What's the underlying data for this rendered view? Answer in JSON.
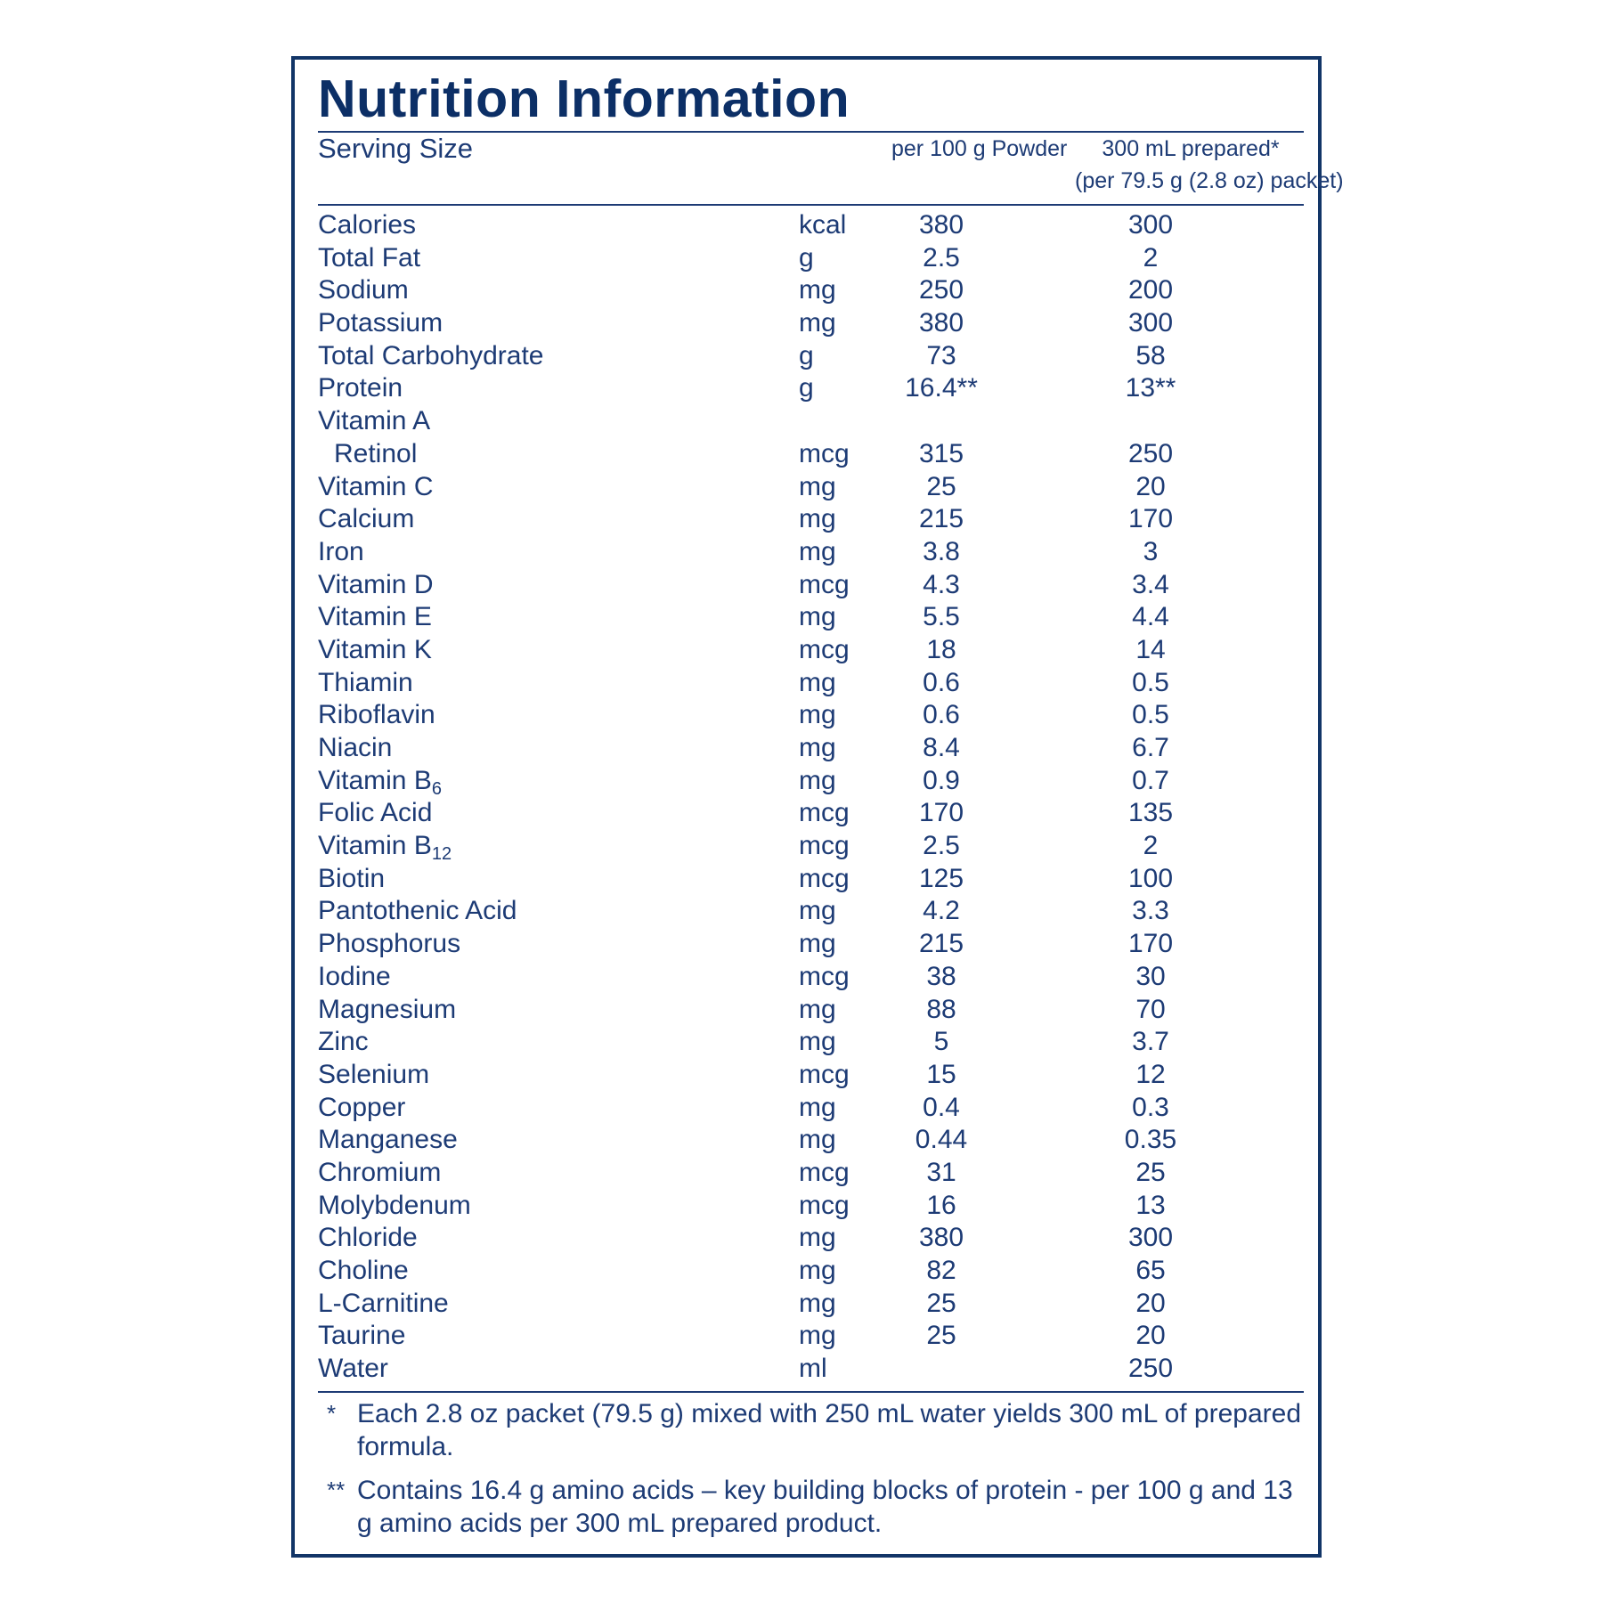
{
  "title": "Nutrition Information",
  "header": {
    "serving_size": "Serving Size",
    "col_powder": "per 100 g Powder",
    "col_prepared_1": "300 mL prepared*",
    "col_prepared_2": "(per 79.5 g (2.8 oz) packet)"
  },
  "rows": [
    {
      "name": "Calories",
      "unit": "kcal",
      "per100": "380",
      "prep": "300"
    },
    {
      "name": "Total Fat",
      "unit": "g",
      "per100": "2.5",
      "prep": "2"
    },
    {
      "name": "Sodium",
      "unit": "mg",
      "per100": "250",
      "prep": "200"
    },
    {
      "name": "Potassium",
      "unit": "mg",
      "per100": "380",
      "prep": "300"
    },
    {
      "name": "Total Carbohydrate",
      "unit": "g",
      "per100": "73",
      "prep": "58"
    },
    {
      "name": "Protein",
      "unit": "g",
      "per100": "16.4**",
      "prep": "13**"
    },
    {
      "name": "Vitamin A",
      "unit": "",
      "per100": "",
      "prep": ""
    },
    {
      "name": "Retinol",
      "unit": "mcg",
      "per100": "315",
      "prep": "250",
      "indent": true
    },
    {
      "name": "Vitamin C",
      "unit": "mg",
      "per100": "25",
      "prep": "20"
    },
    {
      "name": "Calcium",
      "unit": "mg",
      "per100": "215",
      "prep": "170"
    },
    {
      "name": "Iron",
      "unit": "mg",
      "per100": "3.8",
      "prep": "3"
    },
    {
      "name": "Vitamin D",
      "unit": "mcg",
      "per100": "4.3",
      "prep": "3.4"
    },
    {
      "name": "Vitamin E",
      "unit": "mg",
      "per100": "5.5",
      "prep": "4.4"
    },
    {
      "name": "Vitamin K",
      "unit": "mcg",
      "per100": "18",
      "prep": "14"
    },
    {
      "name": "Thiamin",
      "unit": "mg",
      "per100": "0.6",
      "prep": "0.5"
    },
    {
      "name": "Riboflavin",
      "unit": "mg",
      "per100": "0.6",
      "prep": "0.5"
    },
    {
      "name": "Niacin",
      "unit": "mg",
      "per100": "8.4",
      "prep": "6.7"
    },
    {
      "name": "Vitamin B",
      "sub": "6",
      "unit": "mg",
      "per100": "0.9",
      "prep": "0.7"
    },
    {
      "name": "Folic Acid",
      "unit": "mcg",
      "per100": "170",
      "prep": "135"
    },
    {
      "name": "Vitamin B",
      "sub": "12",
      "unit": "mcg",
      "per100": "2.5",
      "prep": "2"
    },
    {
      "name": "Biotin",
      "unit": "mcg",
      "per100": "125",
      "prep": "100"
    },
    {
      "name": "Pantothenic Acid",
      "unit": "mg",
      "per100": "4.2",
      "prep": "3.3"
    },
    {
      "name": "Phosphorus",
      "unit": "mg",
      "per100": "215",
      "prep": "170"
    },
    {
      "name": "Iodine",
      "unit": "mcg",
      "per100": "38",
      "prep": "30"
    },
    {
      "name": "Magnesium",
      "unit": "mg",
      "per100": "88",
      "prep": "70"
    },
    {
      "name": "Zinc",
      "unit": "mg",
      "per100": "5",
      "prep": "3.7"
    },
    {
      "name": "Selenium",
      "unit": "mcg",
      "per100": "15",
      "prep": "12"
    },
    {
      "name": "Copper",
      "unit": "mg",
      "per100": "0.4",
      "prep": "0.3"
    },
    {
      "name": "Manganese",
      "unit": "mg",
      "per100": "0.44",
      "prep": "0.35"
    },
    {
      "name": "Chromium",
      "unit": "mcg",
      "per100": "31",
      "prep": "25"
    },
    {
      "name": "Molybdenum",
      "unit": "mcg",
      "per100": "16",
      "prep": "13"
    },
    {
      "name": "Chloride",
      "unit": "mg",
      "per100": "380",
      "prep": "300"
    },
    {
      "name": "Choline",
      "unit": "mg",
      "per100": "82",
      "prep": "65"
    },
    {
      "name": "L-Carnitine",
      "unit": "mg",
      "per100": "25",
      "prep": "20"
    },
    {
      "name": "Taurine",
      "unit": "mg",
      "per100": "25",
      "prep": "20"
    },
    {
      "name": "Water",
      "unit": "ml",
      "per100": "",
      "prep": "250"
    }
  ],
  "footnotes": [
    {
      "mark": "*",
      "text": "Each 2.8 oz packet (79.5 g) mixed with 250 mL water yields 300 mL of prepared formula."
    },
    {
      "mark": "**",
      "text": "Contains 16.4 g amino acids – key building blocks of protein - per 100 g and 13 g amino acids per 300 mL prepared product."
    }
  ],
  "colors": {
    "ink": "#1d3b75",
    "title": "#0c2f66",
    "border": "#123567"
  }
}
